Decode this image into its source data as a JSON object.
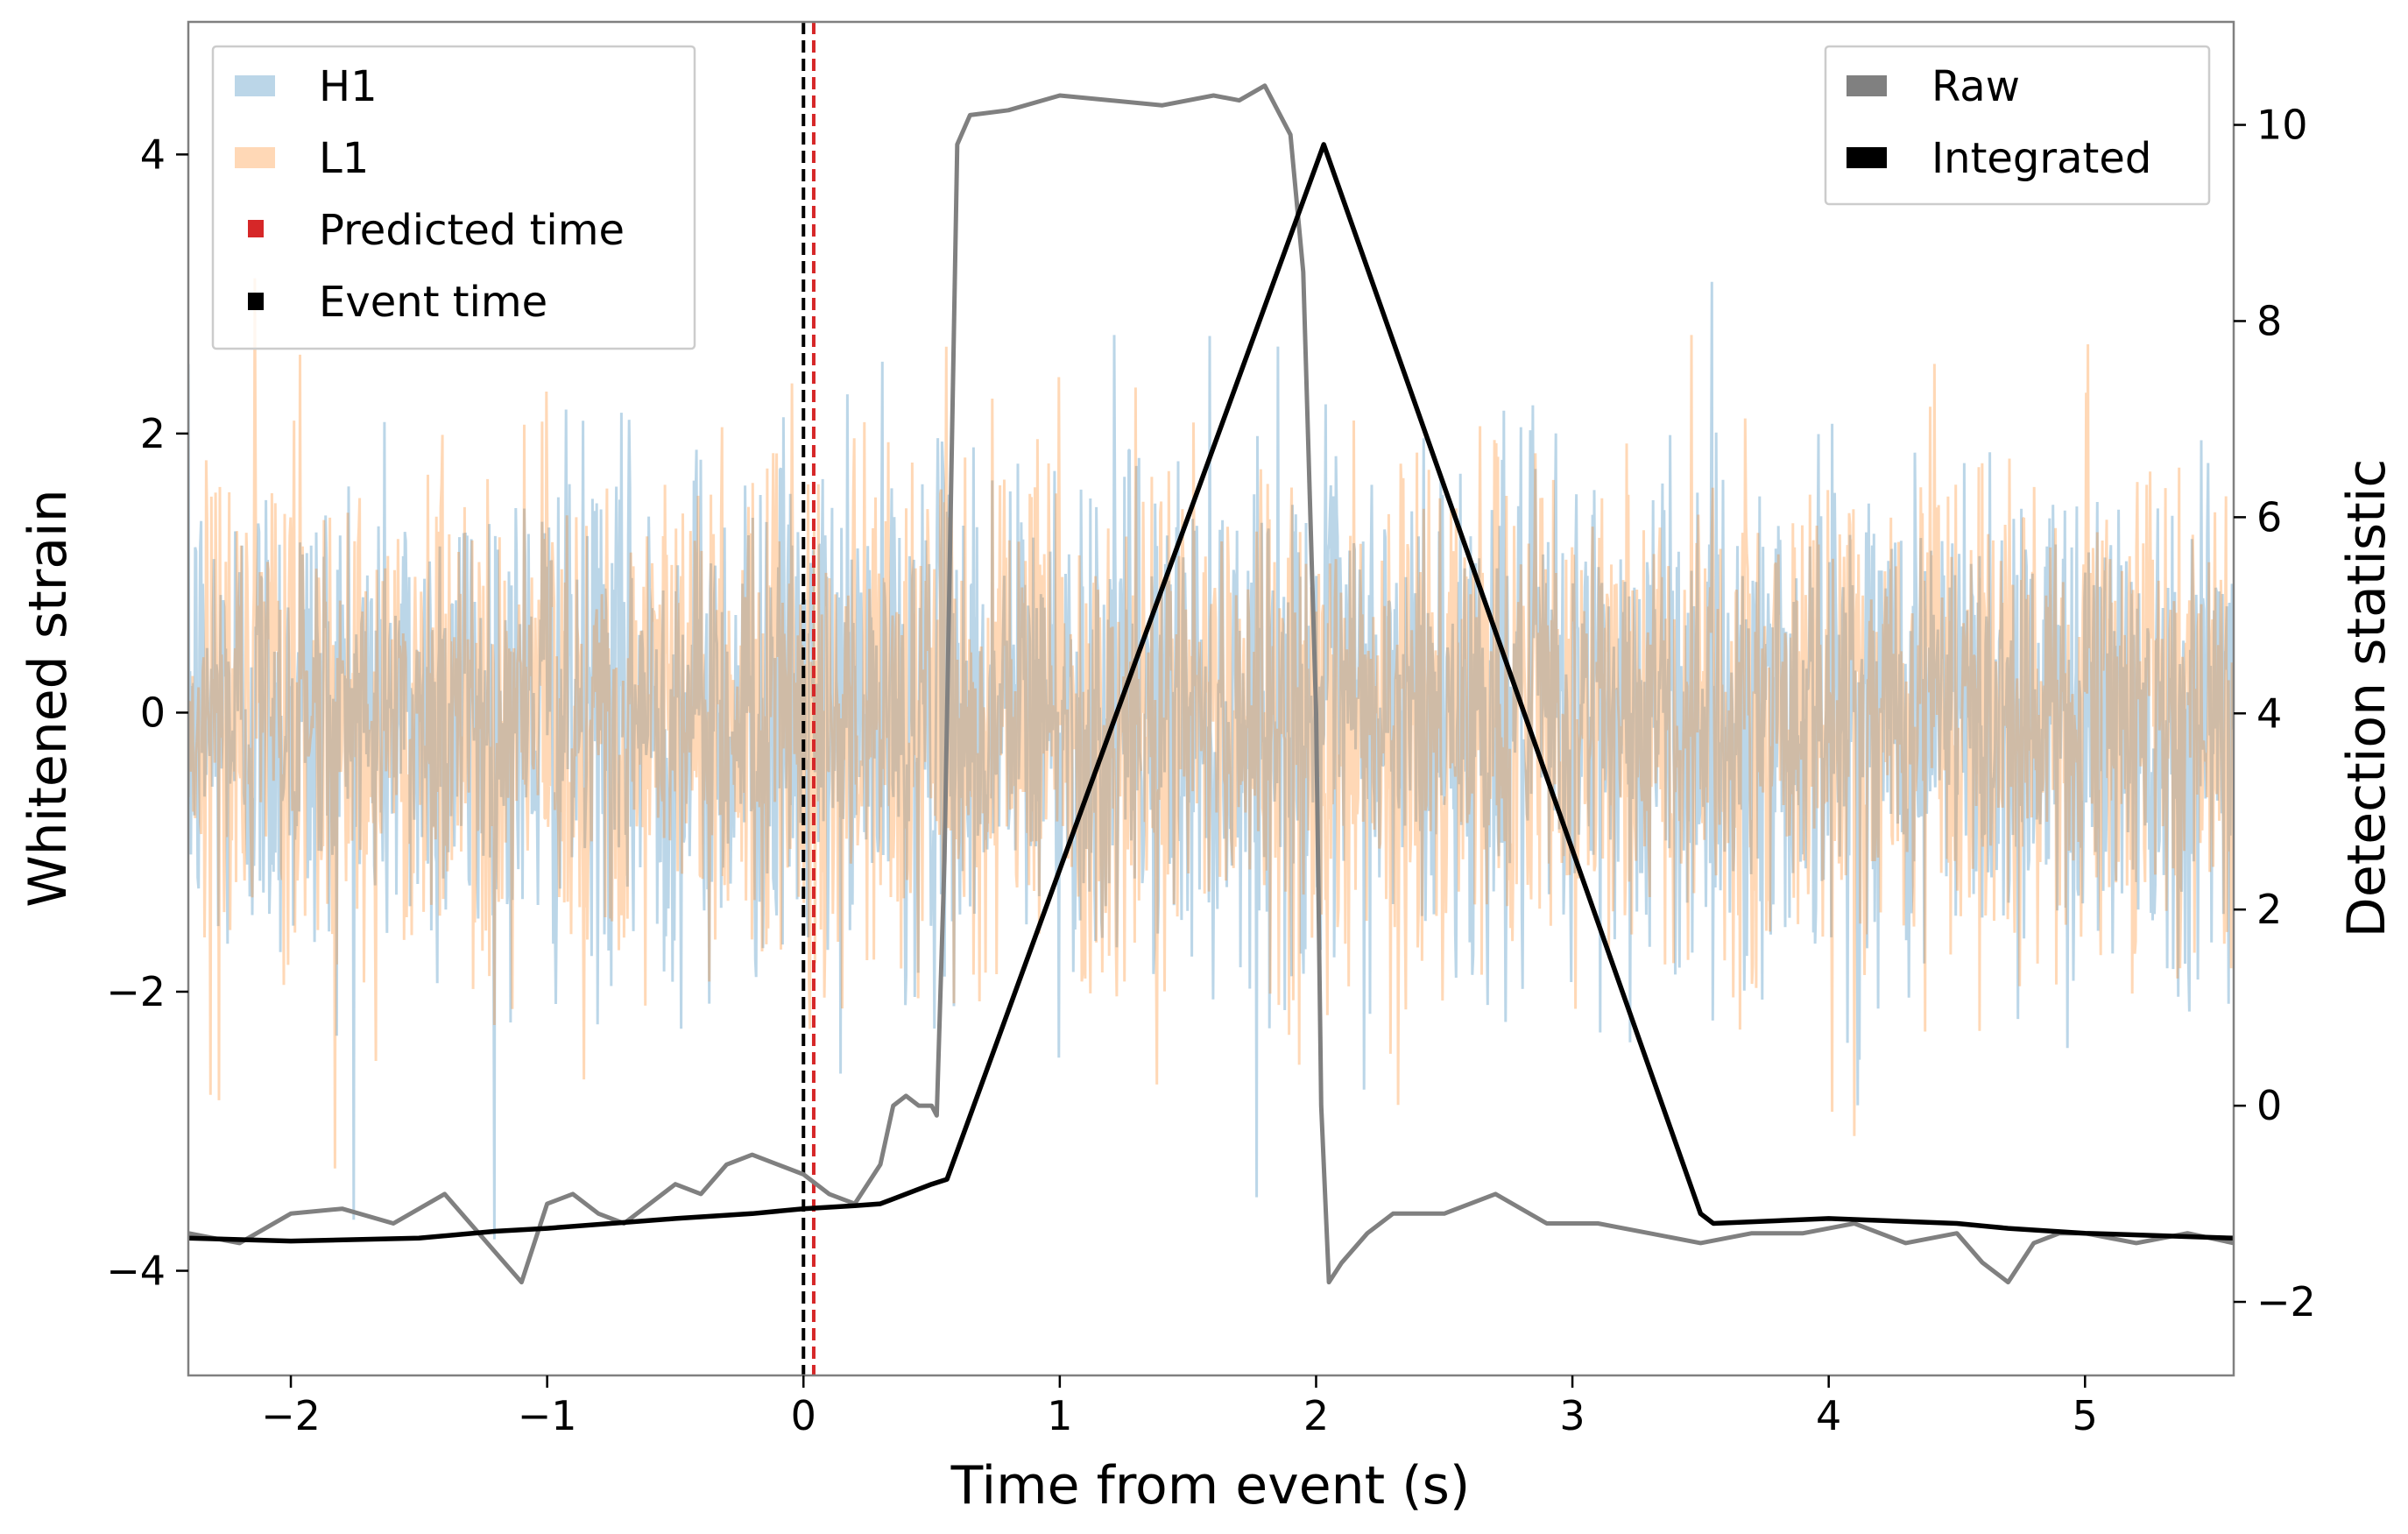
{
  "chart_data": {
    "type": "line",
    "xlabel": "Time from event (s)",
    "ylabel_left": "Whitened strain",
    "ylabel_right": "Detection statistic",
    "xlim": [
      -2.4,
      5.58
    ],
    "ylim_left": [
      -4.75,
      4.95
    ],
    "ylim_right": [
      -2.75,
      11.05
    ],
    "x_ticks": [
      -2,
      -1,
      0,
      1,
      2,
      3,
      4,
      5
    ],
    "x_tick_labels": [
      "−2",
      "−1",
      "0",
      "1",
      "2",
      "3",
      "4",
      "5"
    ],
    "y_left_ticks": [
      -4,
      -2,
      0,
      2,
      4
    ],
    "y_left_tick_labels": [
      "−4",
      "−2",
      "0",
      "2",
      "4"
    ],
    "y_right_ticks": [
      -2,
      0,
      2,
      4,
      6,
      8,
      10
    ],
    "y_right_tick_labels": [
      "−2",
      "0",
      "2",
      "4",
      "6",
      "8",
      "10"
    ],
    "grid": false,
    "colors": {
      "H1": "#1f77b4",
      "L1": "#ff7f0e",
      "predicted": "#d62728",
      "event": "#000000",
      "raw": "#808080",
      "integrated": "#000000"
    },
    "strain_series": [
      {
        "name": "H1",
        "axis": "left",
        "noise_sigma": 0.9,
        "opacity": 0.3
      },
      {
        "name": "L1",
        "axis": "left",
        "noise_sigma": 0.9,
        "opacity": 0.3
      }
    ],
    "vertical_lines": [
      {
        "name": "Event time",
        "x": 0.0,
        "style": "dashed"
      },
      {
        "name": "Predicted time",
        "x": 0.04,
        "style": "dashed"
      }
    ],
    "detection_series": [
      {
        "name": "Raw",
        "axis": "right",
        "x": [
          -2.4,
          -2.2,
          -2.0,
          -1.8,
          -1.6,
          -1.4,
          -1.3,
          -1.2,
          -1.1,
          -1.0,
          -0.9,
          -0.8,
          -0.7,
          -0.6,
          -0.5,
          -0.4,
          -0.3,
          -0.2,
          -0.1,
          0.0,
          0.1,
          0.2,
          0.25,
          0.3,
          0.35,
          0.4,
          0.45,
          0.5,
          0.52,
          0.55,
          0.6,
          0.65,
          0.8,
          1.0,
          1.2,
          1.4,
          1.6,
          1.7,
          1.8,
          1.9,
          1.95,
          2.0,
          2.02,
          2.05,
          2.1,
          2.2,
          2.3,
          2.5,
          2.7,
          2.9,
          3.1,
          3.3,
          3.5,
          3.7,
          3.9,
          4.1,
          4.3,
          4.5,
          4.6,
          4.7,
          4.8,
          4.9,
          5.0,
          5.2,
          5.4,
          5.58
        ],
        "y": [
          -1.3,
          -1.4,
          -1.1,
          -1.05,
          -1.2,
          -0.9,
          -1.2,
          -1.5,
          -1.8,
          -1.0,
          -0.9,
          -1.1,
          -1.2,
          -1.0,
          -0.8,
          -0.9,
          -0.6,
          -0.5,
          -0.6,
          -0.7,
          -0.9,
          -1.0,
          -0.8,
          -0.6,
          0.0,
          0.1,
          0.0,
          0.0,
          -0.1,
          2.5,
          9.8,
          10.1,
          10.15,
          10.3,
          10.25,
          10.2,
          10.3,
          10.25,
          10.4,
          9.9,
          8.5,
          4.0,
          0.0,
          -1.8,
          -1.6,
          -1.3,
          -1.1,
          -1.1,
          -0.9,
          -1.2,
          -1.2,
          -1.3,
          -1.4,
          -1.3,
          -1.3,
          -1.2,
          -1.4,
          -1.3,
          -1.6,
          -1.8,
          -1.4,
          -1.3,
          -1.3,
          -1.4,
          -1.3,
          -1.4
        ]
      },
      {
        "name": "Integrated",
        "axis": "right",
        "x": [
          -2.4,
          -2.0,
          -1.5,
          -1.2,
          -1.0,
          -0.5,
          -0.2,
          0.0,
          0.2,
          0.3,
          0.4,
          0.5,
          0.56,
          2.03,
          3.5,
          3.55,
          4.0,
          4.5,
          4.7,
          5.0,
          5.58
        ],
        "y": [
          -1.35,
          -1.38,
          -1.35,
          -1.28,
          -1.25,
          -1.15,
          -1.1,
          -1.05,
          -1.02,
          -1.0,
          -0.9,
          -0.8,
          -0.75,
          9.8,
          -1.1,
          -1.2,
          -1.15,
          -1.2,
          -1.25,
          -1.3,
          -1.35
        ]
      }
    ],
    "legend_left": {
      "placement": "upper-left",
      "entries": [
        "H1",
        "L1",
        "Predicted time",
        "Event time"
      ]
    },
    "legend_right": {
      "placement": "upper-right",
      "entries": [
        "Raw",
        "Integrated"
      ]
    }
  }
}
